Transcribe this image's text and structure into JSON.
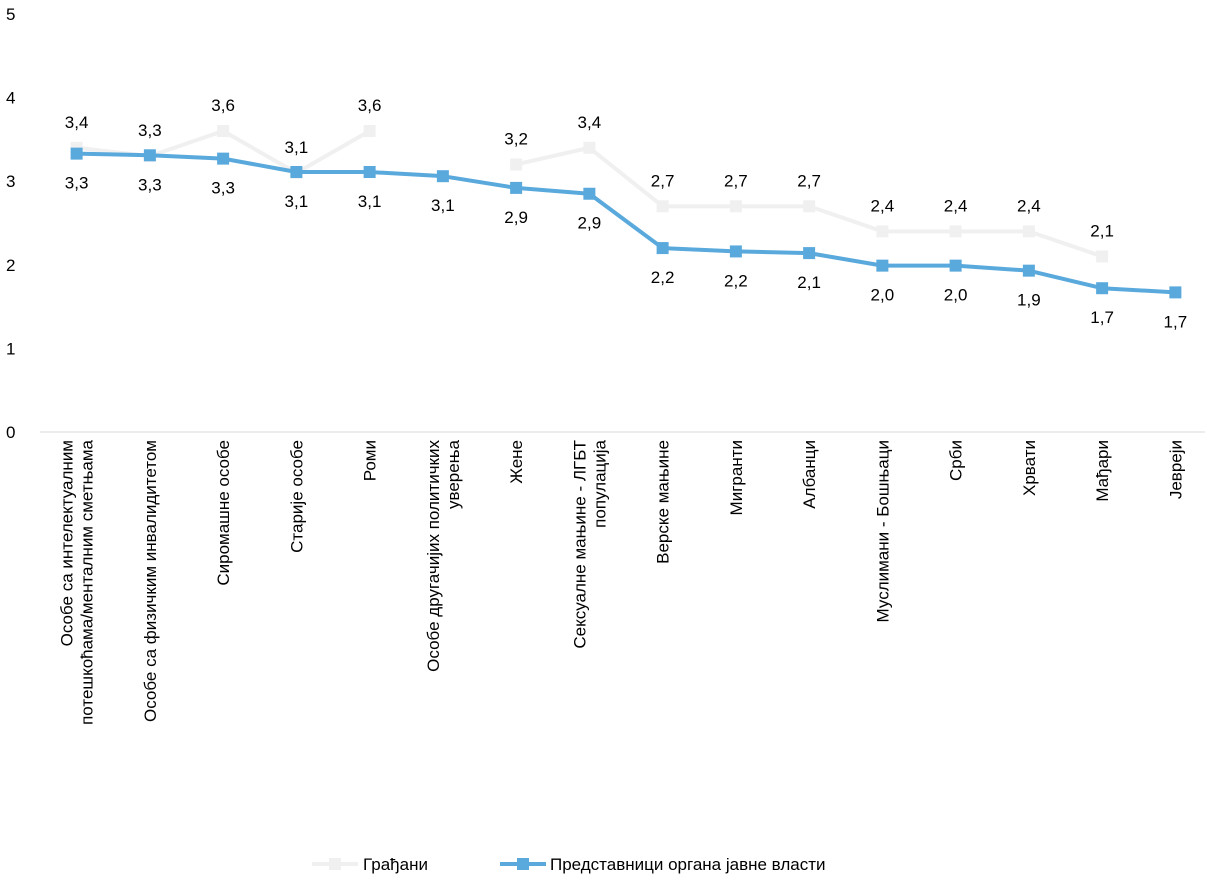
{
  "chart_data": {
    "type": "line",
    "title": "",
    "xlabel": "",
    "ylabel": "",
    "ylim": [
      0,
      5
    ],
    "yticks": [
      "0",
      "1",
      "2",
      "3",
      "4",
      "5"
    ],
    "grid": false,
    "legend_position": "bottom",
    "categories": [
      [
        "Особе са интелектуалним",
        "потешкоћама/менталним сметњама"
      ],
      [
        "Особе са физичким инвалидитетом"
      ],
      [
        "Сиромашне особе"
      ],
      [
        "Старије особе"
      ],
      [
        "Роми"
      ],
      [
        "Особе другачијих политичких",
        "уверења"
      ],
      [
        "Жене"
      ],
      [
        "Сексуалне мањине - ЛГБТ",
        "популација"
      ],
      [
        "Верске мањине"
      ],
      [
        "Мигранти"
      ],
      [
        "Албанци"
      ],
      [
        "Муслимани - Бошњаци"
      ],
      [
        "Срби"
      ],
      [
        "Хрвати"
      ],
      [
        "Мађари"
      ],
      [
        "Јевреји"
      ]
    ],
    "series": [
      {
        "name": "Грађани",
        "color": "#f0f0f0",
        "values": [
          3.4,
          3.3,
          3.6,
          3.1,
          3.6,
          null,
          3.2,
          3.4,
          2.7,
          2.7,
          2.7,
          2.4,
          2.4,
          2.4,
          2.1,
          null
        ],
        "labels": [
          "3,4",
          "3,3",
          "3,6",
          "3,1",
          "3,6",
          "",
          "3,2",
          "3,4",
          "2,7",
          "2,7",
          "2,7",
          "2,4",
          "2,4",
          "2,4",
          "2,1",
          ""
        ]
      },
      {
        "name": "Представници органа јавне власти",
        "color": "#5aa9dc",
        "values": [
          3.33,
          3.31,
          3.27,
          3.11,
          3.11,
          3.06,
          2.92,
          2.85,
          2.2,
          2.16,
          2.14,
          1.99,
          1.99,
          1.93,
          1.72,
          1.67
        ],
        "labels": [
          "3,3",
          "3,3",
          "3,3",
          "3,1",
          "3,1",
          "3,1",
          "2,9",
          "2,9",
          "2,2",
          "2,2",
          "2,1",
          "2,0",
          "2,0",
          "1,9",
          "1,7",
          "1,7"
        ]
      }
    ]
  }
}
